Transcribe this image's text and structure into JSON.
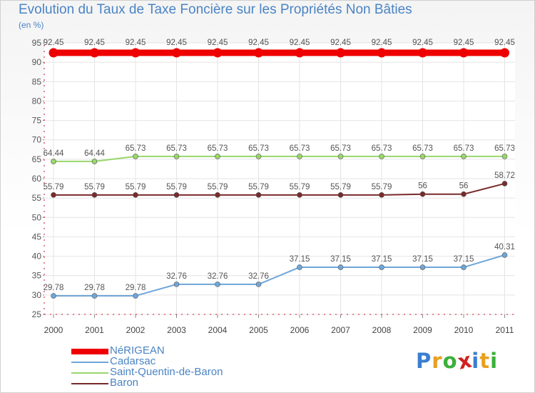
{
  "chart_data": {
    "type": "line",
    "title": "Evolution du Taux de Taxe Foncière sur les Propriétés Non Bâties",
    "ylabel": "(en %)",
    "xlabel": "",
    "categories": [
      "2000",
      "2001",
      "2002",
      "2003",
      "2004",
      "2005",
      "2006",
      "2007",
      "2008",
      "2009",
      "2010",
      "2011"
    ],
    "ylim": [
      25,
      95
    ],
    "yticks": [
      25,
      30,
      35,
      40,
      45,
      50,
      55,
      60,
      65,
      70,
      75,
      80,
      85,
      90,
      95
    ],
    "grid": true,
    "series": [
      {
        "name": "NéRIGEAN",
        "color": "#ee0000",
        "values": [
          92.45,
          92.45,
          92.45,
          92.45,
          92.45,
          92.45,
          92.45,
          92.45,
          92.45,
          92.45,
          92.45,
          92.45
        ],
        "labels": [
          "92.45",
          "92.45",
          "92.45",
          "92.45",
          "92.45",
          "92.45",
          "92.45",
          "92.45",
          "92.45",
          "92.45",
          "92.45",
          "92.45"
        ]
      },
      {
        "name": "Cadarsac",
        "color": "#6fa6d8",
        "values": [
          29.78,
          29.78,
          29.78,
          32.76,
          32.76,
          32.76,
          37.15,
          37.15,
          37.15,
          37.15,
          37.15,
          40.31
        ],
        "labels": [
          "29.78",
          "29.78",
          "29.78",
          "32.76",
          "32.76",
          "32.76",
          "37.15",
          "37.15",
          "37.15",
          "37.15",
          "37.15",
          "40.31"
        ]
      },
      {
        "name": "Saint-Quentin-de-Baron",
        "color": "#99d66b",
        "values": [
          64.44,
          64.44,
          65.73,
          65.73,
          65.73,
          65.73,
          65.73,
          65.73,
          65.73,
          65.73,
          65.73,
          65.73
        ],
        "labels": [
          "64.44",
          "64.44",
          "65.73",
          "65.73",
          "65.73",
          "65.73",
          "65.73",
          "65.73",
          "65.73",
          "65.73",
          "65.73",
          "65.73"
        ]
      },
      {
        "name": "Baron",
        "color": "#7a2a2a",
        "values": [
          55.79,
          55.79,
          55.79,
          55.79,
          55.79,
          55.79,
          55.79,
          55.79,
          55.79,
          56,
          56,
          58.72
        ],
        "labels": [
          "55.79",
          "55.79",
          "55.79",
          "55.79",
          "55.79",
          "55.79",
          "55.79",
          "55.79",
          "55.79",
          "56",
          "56",
          "58.72"
        ]
      }
    ],
    "legend": {
      "placement": "bottom-left",
      "entries": [
        "NéRIGEAN",
        "Cadarsac",
        "Saint-Quentin-de-Baron",
        "Baron"
      ]
    }
  },
  "logo": {
    "letters": [
      "P",
      "r",
      "o",
      "x",
      "i",
      "t",
      "i"
    ],
    "colors": [
      "#3a7fd0",
      "#e8a020",
      "#3ab03a",
      "#d02020",
      "#3a7fd0",
      "#e8a020",
      "#3ab03a"
    ]
  }
}
